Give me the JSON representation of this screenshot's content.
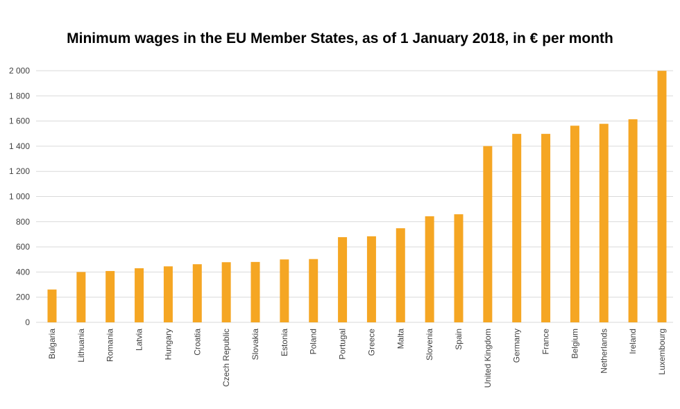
{
  "chart_data": {
    "type": "bar",
    "title": "Minimum wages in the EU Member States, as of 1 January 2018, in € per month",
    "xlabel": "",
    "ylabel": "",
    "ylim": [
      0,
      2000
    ],
    "yticks": [
      0,
      200,
      400,
      600,
      800,
      1000,
      1200,
      1400,
      1600,
      1800,
      2000
    ],
    "ytick_labels": [
      "0",
      "200",
      "400",
      "600",
      "800",
      "1 000",
      "1 200",
      "1 400",
      "1 600",
      "1 800",
      "2 000"
    ],
    "grid": true,
    "bar_color": "#f5a623",
    "categories": [
      "Bulgaria",
      "Lithuania",
      "Romania",
      "Latvia",
      "Hungary",
      "Croatia",
      "Czech Republic",
      "Slovakia",
      "Estonia",
      "Poland",
      "Portugal",
      "Greece",
      "Malta",
      "Slovenia",
      "Spain",
      "United Kingdom",
      "Germany",
      "France",
      "Belgium",
      "Netherlands",
      "Ireland",
      "Luxembourg"
    ],
    "values": [
      261,
      400,
      408,
      430,
      445,
      462,
      478,
      480,
      500,
      503,
      677,
      684,
      748,
      843,
      859,
      1401,
      1498,
      1498,
      1563,
      1578,
      1614,
      1999
    ]
  }
}
